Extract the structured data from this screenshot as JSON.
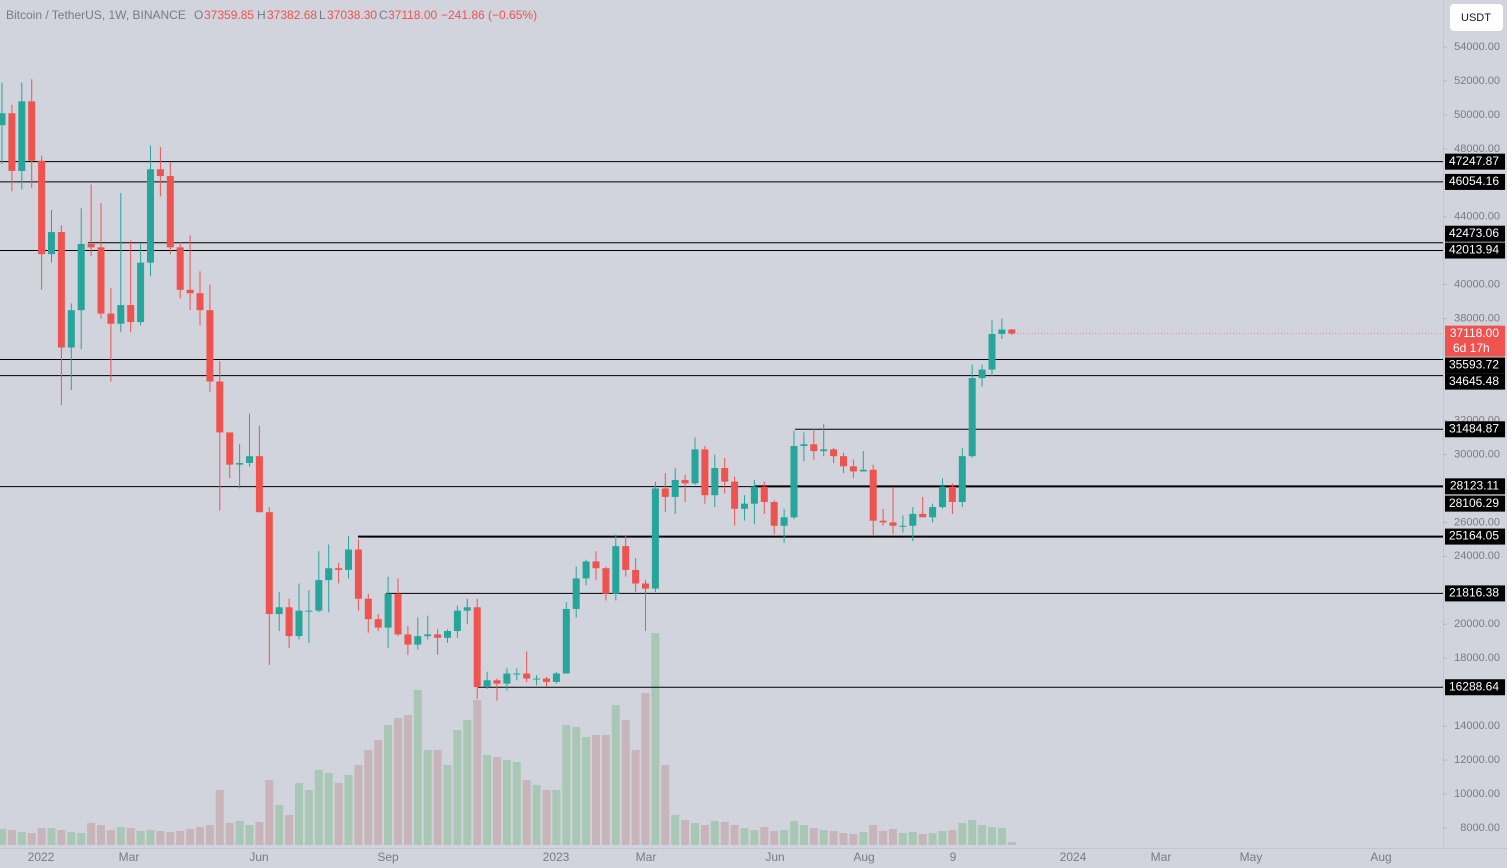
{
  "header": {
    "symbol": "Bitcoin / TetherUS, 1W, BINANCE",
    "o": "O",
    "open": "37359.85",
    "h": "H",
    "high": "37382.68",
    "l": "L",
    "low": "37038.30",
    "c": "C",
    "close": "37118.00",
    "change": "−241.86 (−0.65%)"
  },
  "currency": "USDT",
  "chart_data": {
    "type": "candlestick",
    "ylim": [
      6820,
      56770
    ],
    "yticks": [
      {
        "value": 54000,
        "label": "54000.00"
      },
      {
        "value": 52000,
        "label": "52000.00"
      },
      {
        "value": 50000,
        "label": "50000.00"
      },
      {
        "value": 48000,
        "label": "48000.00"
      },
      {
        "value": 44000,
        "label": "44000.00"
      },
      {
        "value": 40000,
        "label": "40000.00"
      },
      {
        "value": 38000,
        "label": "38000.00"
      },
      {
        "value": 32000,
        "label": "32000.00"
      },
      {
        "value": 30000,
        "label": "30000.00"
      },
      {
        "value": 26000,
        "label": "26000.00"
      },
      {
        "value": 24000,
        "label": "24000.00"
      },
      {
        "value": 20000,
        "label": "20000.00"
      },
      {
        "value": 18000,
        "label": "18000.00"
      },
      {
        "value": 14000,
        "label": "14000.00"
      },
      {
        "value": 12000,
        "label": "12000.00"
      },
      {
        "value": 10000,
        "label": "10000.00"
      },
      {
        "value": 8000,
        "label": "8000.00"
      }
    ],
    "xlabels": [
      "2022",
      "Mar",
      "Jun",
      "Sep",
      "2023",
      "Mar",
      "Jun",
      "Aug",
      "9",
      "2024",
      "Mar",
      "May",
      "Aug"
    ],
    "levels": [
      47247.87,
      46054.16,
      42473.06,
      42013.94,
      35593.72,
      34645.48,
      31484.87,
      28123.11,
      28106.29,
      25164.05,
      21816.38,
      16288.64
    ],
    "last_price": {
      "value": 37118,
      "label": "37118.00"
    },
    "countdown": "6d 17h",
    "up_color": "#26a69a",
    "down_color": "#ef5350",
    "ohlc": [
      [
        49400,
        51900,
        47100,
        50100
      ],
      [
        50100,
        50600,
        45500,
        46700
      ],
      [
        46700,
        51900,
        45600,
        50800
      ],
      [
        50800,
        52100,
        45700,
        47300
      ],
      [
        47300,
        47600,
        39700,
        41800
      ],
      [
        41800,
        44400,
        41300,
        43100
      ],
      [
        43100,
        43500,
        32900,
        36300
      ],
      [
        36300,
        38900,
        33800,
        38500
      ],
      [
        38500,
        44500,
        36200,
        42400
      ],
      [
        42400,
        45900,
        41700,
        42200
      ],
      [
        42200,
        44800,
        38000,
        38300
      ],
      [
        38300,
        39800,
        34300,
        37700
      ],
      [
        37700,
        45400,
        37200,
        38800
      ],
      [
        38800,
        42600,
        37200,
        37800
      ],
      [
        37800,
        42400,
        37600,
        41300
      ],
      [
        41300,
        48200,
        40500,
        46800
      ],
      [
        46800,
        48100,
        45200,
        46400
      ],
      [
        46400,
        47200,
        41800,
        42200
      ],
      [
        42200,
        42500,
        39200,
        39700
      ],
      [
        39700,
        42900,
        38500,
        39500
      ],
      [
        39500,
        40800,
        37600,
        38500
      ],
      [
        38500,
        40000,
        33700,
        34300
      ],
      [
        34300,
        35500,
        26700,
        31300
      ],
      [
        31300,
        31300,
        28600,
        29400
      ],
      [
        29400,
        30600,
        28000,
        29500
      ],
      [
        29500,
        32400,
        29300,
        29900
      ],
      [
        29900,
        31700,
        26600,
        26600
      ],
      [
        26600,
        26900,
        17600,
        20600
      ],
      [
        20600,
        21900,
        19600,
        21000
      ],
      [
        21000,
        21500,
        18600,
        19300
      ],
      [
        19300,
        22400,
        19100,
        20800
      ],
      [
        20800,
        22000,
        18900,
        20800
      ],
      [
        20800,
        24300,
        20700,
        22600
      ],
      [
        22600,
        24700,
        20700,
        23300
      ],
      [
        23300,
        23600,
        22400,
        23200
      ],
      [
        23200,
        25200,
        22700,
        24400
      ],
      [
        24400,
        25000,
        20800,
        21500
      ],
      [
        21500,
        21800,
        19500,
        20300
      ],
      [
        20300,
        20600,
        19600,
        19800
      ],
      [
        19800,
        22800,
        18600,
        21800
      ],
      [
        21800,
        22700,
        19300,
        19400
      ],
      [
        19400,
        19900,
        18200,
        18800
      ],
      [
        18800,
        20400,
        18500,
        19300
      ],
      [
        19300,
        20500,
        19100,
        19400
      ],
      [
        19400,
        19700,
        18200,
        19200
      ],
      [
        19200,
        19700,
        18900,
        19600
      ],
      [
        19600,
        21100,
        19200,
        20800
      ],
      [
        20800,
        21500,
        20000,
        21000
      ],
      [
        21000,
        21500,
        15600,
        16300
      ],
      [
        16300,
        17200,
        16200,
        16700
      ],
      [
        16700,
        16800,
        15500,
        16500
      ],
      [
        16500,
        17400,
        16100,
        17100
      ],
      [
        17100,
        17400,
        16700,
        17100
      ],
      [
        17100,
        18400,
        16600,
        16800
      ],
      [
        16800,
        17000,
        16400,
        16800
      ],
      [
        16800,
        16900,
        16300,
        16600
      ],
      [
        16600,
        17200,
        16500,
        17100
      ],
      [
        17100,
        21300,
        17100,
        20900
      ],
      [
        20900,
        23400,
        20400,
        22700
      ],
      [
        22700,
        23800,
        22300,
        23700
      ],
      [
        23700,
        24300,
        22600,
        23300
      ],
      [
        23300,
        23400,
        21400,
        21800
      ],
      [
        21800,
        25300,
        21400,
        24600
      ],
      [
        24600,
        25200,
        22800,
        23200
      ],
      [
        23200,
        23900,
        21900,
        22400
      ],
      [
        22400,
        22600,
        19600,
        22100
      ],
      [
        22100,
        28400,
        21900,
        28000
      ],
      [
        28000,
        28900,
        26600,
        27500
      ],
      [
        27500,
        29200,
        26500,
        28500
      ],
      [
        28500,
        28800,
        27200,
        28300
      ],
      [
        28300,
        31000,
        28200,
        30300
      ],
      [
        30300,
        30500,
        27100,
        27600
      ],
      [
        27600,
        30000,
        26900,
        29200
      ],
      [
        29200,
        29800,
        27700,
        28400
      ],
      [
        28400,
        28700,
        25800,
        26800
      ],
      [
        26800,
        27600,
        26100,
        27100
      ],
      [
        27100,
        28500,
        25900,
        28100
      ],
      [
        28100,
        28400,
        26500,
        27200
      ],
      [
        27200,
        27300,
        25300,
        25800
      ],
      [
        25800,
        26800,
        24800,
        26300
      ],
      [
        26300,
        31400,
        26200,
        30500
      ],
      [
        30500,
        31300,
        29600,
        30600
      ],
      [
        30600,
        31500,
        29700,
        30200
      ],
      [
        30200,
        31800,
        29900,
        30300
      ],
      [
        30300,
        30400,
        29500,
        29900
      ],
      [
        29900,
        30100,
        28900,
        29300
      ],
      [
        29300,
        29700,
        28600,
        29000
      ],
      [
        29000,
        30200,
        29000,
        29100
      ],
      [
        29100,
        29400,
        25200,
        26100
      ],
      [
        26100,
        26800,
        25800,
        26000
      ],
      [
        26000,
        28100,
        25300,
        25800
      ],
      [
        25800,
        26400,
        25400,
        25800
      ],
      [
        25800,
        26900,
        24900,
        26500
      ],
      [
        26500,
        27500,
        26300,
        26300
      ],
      [
        26300,
        27100,
        26000,
        26900
      ],
      [
        26900,
        28600,
        26800,
        28100
      ],
      [
        28100,
        28300,
        26500,
        27200
      ],
      [
        27200,
        30400,
        26900,
        29900
      ],
      [
        29900,
        35300,
        29800,
        34500
      ],
      [
        34500,
        35300,
        34000,
        35000
      ],
      [
        35000,
        37900,
        34600,
        37100
      ],
      [
        37100,
        38000,
        36800,
        37359.85
      ],
      [
        37359.85,
        37382.68,
        37038.3,
        37118
      ]
    ],
    "volume": [
      16,
      15,
      13,
      12,
      17,
      17,
      15,
      13,
      12,
      22,
      20,
      15,
      18,
      17,
      14,
      15,
      14,
      13,
      14,
      16,
      18,
      20,
      55,
      22,
      24,
      20,
      23,
      65,
      40,
      30,
      62,
      55,
      75,
      72,
      62,
      70,
      80,
      95,
      105,
      120,
      127,
      130,
      155,
      95,
      95,
      80,
      115,
      125,
      145,
      90,
      88,
      85,
      83,
      65,
      60,
      55,
      55,
      120,
      118,
      108,
      110,
      110,
      140,
      125,
      95,
      152,
      212,
      80,
      30,
      25,
      22,
      20,
      24,
      23,
      20,
      17,
      15,
      18,
      14,
      15,
      24,
      20,
      17,
      15,
      14,
      12,
      11,
      13,
      20,
      14,
      16,
      12,
      13,
      11,
      12,
      14,
      15,
      22,
      25,
      20,
      18,
      17,
      3
    ]
  }
}
